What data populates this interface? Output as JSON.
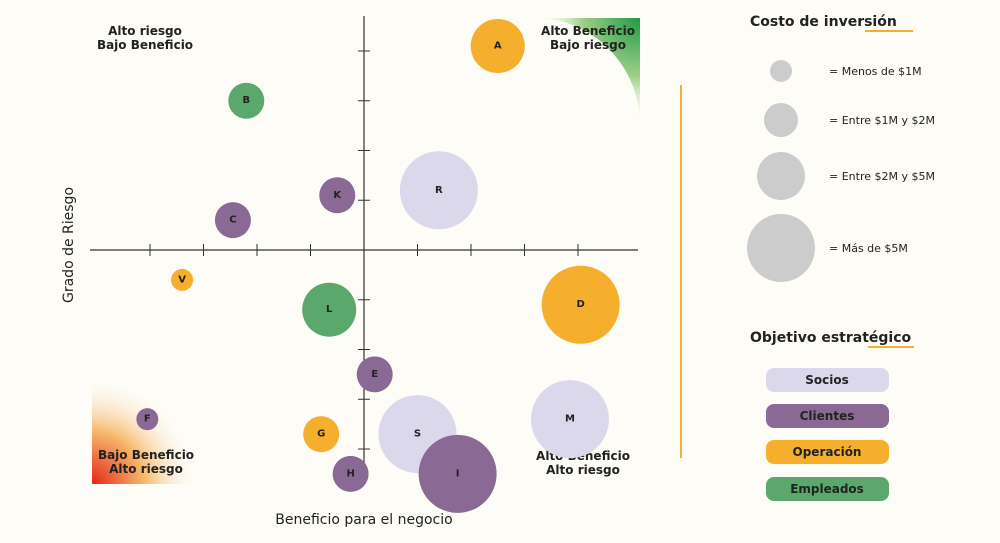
{
  "chart_data": {
    "type": "scatter",
    "xlabel": "Beneficio para el negocio",
    "ylabel": "Grado de Riesgo",
    "xlim": [
      -5,
      5
    ],
    "ylim": [
      -5,
      5
    ],
    "quadrants": {
      "top_left": [
        "Alto riesgo",
        "Bajo Beneficio"
      ],
      "top_right": [
        "Alto Beneficio",
        "Bajo riesgo"
      ],
      "bottom_left": [
        "Bajo Beneficio",
        "Alto riesgo"
      ],
      "bottom_right": [
        "Alto Beneficio",
        "Alto riesgo"
      ]
    },
    "points": [
      {
        "label": "A",
        "x": 2.5,
        "y": 4.1,
        "size": 3,
        "group": "Operación"
      },
      {
        "label": "B",
        "x": -2.2,
        "y": 3.0,
        "size": 2,
        "group": "Empleados"
      },
      {
        "label": "K",
        "x": -0.5,
        "y": 1.1,
        "size": 2,
        "group": "Clientes"
      },
      {
        "label": "R",
        "x": 1.4,
        "y": 1.2,
        "size": 4,
        "group": "Socios"
      },
      {
        "label": "C",
        "x": -2.45,
        "y": 0.6,
        "size": 2,
        "group": "Clientes"
      },
      {
        "label": "V",
        "x": -3.4,
        "y": -0.6,
        "size": 1,
        "group": "Operación"
      },
      {
        "label": "L",
        "x": -0.65,
        "y": -1.2,
        "size": 3,
        "group": "Empleados"
      },
      {
        "label": "D",
        "x": 4.05,
        "y": -1.1,
        "size": 4,
        "group": "Operación"
      },
      {
        "label": "E",
        "x": 0.2,
        "y": -2.5,
        "size": 2,
        "group": "Clientes"
      },
      {
        "label": "F",
        "x": -4.05,
        "y": -3.4,
        "size": 1,
        "group": "Clientes"
      },
      {
        "label": "M",
        "x": 3.85,
        "y": -3.4,
        "size": 4,
        "group": "Socios"
      },
      {
        "label": "G",
        "x": -0.8,
        "y": -3.7,
        "size": 2,
        "group": "Operación"
      },
      {
        "label": "S",
        "x": 1.0,
        "y": -3.7,
        "size": 4,
        "group": "Socios"
      },
      {
        "label": "H",
        "x": -0.25,
        "y": -4.5,
        "size": 2,
        "group": "Clientes"
      },
      {
        "label": "I",
        "x": 1.75,
        "y": -4.5,
        "size": 4,
        "group": "Clientes"
      }
    ]
  },
  "legend_size": {
    "title": "Costo de inversión",
    "items": [
      {
        "size": 1,
        "label": "= Menos de $1M"
      },
      {
        "size": 2,
        "label": "= Entre $1M y $2M"
      },
      {
        "size": 3,
        "label": "= Entre $2M y $5M"
      },
      {
        "size": 4,
        "label": "= Más de $5M"
      }
    ]
  },
  "legend_groups": {
    "title": "Objetivo estratégico",
    "items": [
      {
        "name": "Socios",
        "color": "#dcd8ec"
      },
      {
        "name": "Clientes",
        "color": "#8a6a94"
      },
      {
        "name": "Operación",
        "color": "#f6ae2d"
      },
      {
        "name": "Empleados",
        "color": "#5aa86c"
      }
    ]
  },
  "colors": {
    "accent_line": "#f6ae2d",
    "axis": "#333333",
    "size_legend_bubble": "#cccccc"
  }
}
